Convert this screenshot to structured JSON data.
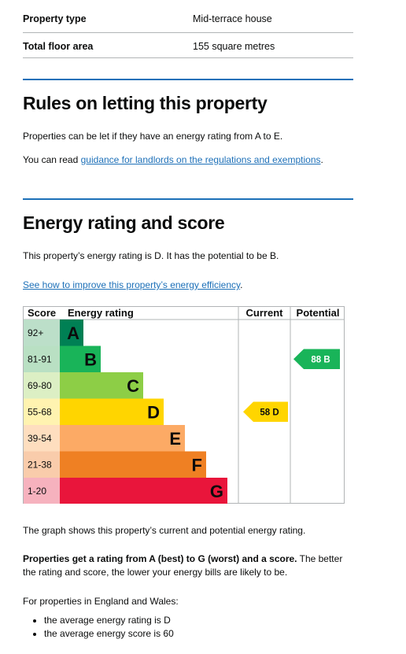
{
  "summary": {
    "property_type_label": "Property type",
    "property_type_value": "Mid-terrace house",
    "floor_area_label": "Total floor area",
    "floor_area_value": "155 square metres"
  },
  "letting": {
    "heading": "Rules on letting this property",
    "para1": "Properties can be let if they have an energy rating from A to E.",
    "para2_prefix": "You can read ",
    "para2_link": "guidance for landlords on the regulations and exemptions",
    "para2_suffix": "."
  },
  "energy": {
    "heading": "Energy rating and score",
    "para1": "This property’s energy rating is D. It has the potential to be B.",
    "improve_link": "See how to improve this property’s energy efficiency",
    "improve_suffix": ".",
    "graph_caption": "The graph shows this property’s current and potential energy rating.",
    "bold_text": "Properties get a rating from A (best) to G (worst) and a score.",
    "rest_text": " The better the rating and score, the lower your energy bills are likely to be.",
    "england_wales": "For properties in England and Wales:",
    "averages": [
      "the average energy rating is D",
      "the average energy score is 60"
    ]
  },
  "chart_data": {
    "type": "table",
    "headers": {
      "score": "Score",
      "rating": "Energy rating",
      "current": "Current",
      "potential": "Potential"
    },
    "bands": [
      {
        "range": "92+",
        "letter": "A",
        "color": "#008054"
      },
      {
        "range": "81-91",
        "letter": "B",
        "color": "#19b459"
      },
      {
        "range": "69-80",
        "letter": "C",
        "color": "#8dce46"
      },
      {
        "range": "55-68",
        "letter": "D",
        "color": "#ffd500"
      },
      {
        "range": "39-54",
        "letter": "E",
        "color": "#fcaa65"
      },
      {
        "range": "21-38",
        "letter": "F",
        "color": "#ef8023"
      },
      {
        "range": "1-20",
        "letter": "G",
        "color": "#e9153b"
      }
    ],
    "current": {
      "score": 58,
      "letter": "D",
      "label": "58 D",
      "color": "#ffd500"
    },
    "potential": {
      "score": 88,
      "letter": "B",
      "label": "88 B",
      "color": "#19b459"
    }
  }
}
